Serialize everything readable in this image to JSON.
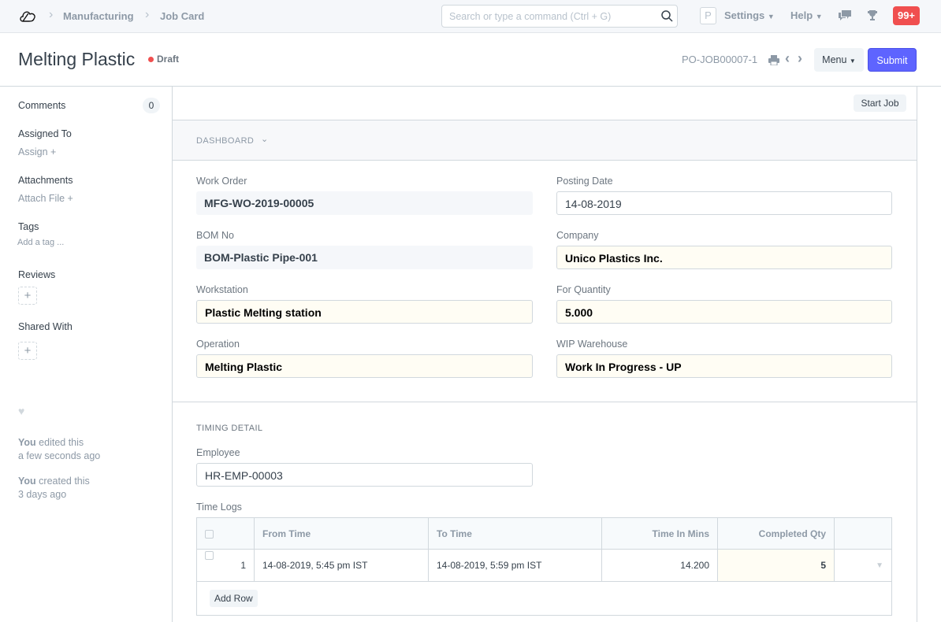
{
  "navbar": {
    "logo": "cloud-logo",
    "breadcrumbs": [
      "Manufacturing",
      "Job Card"
    ],
    "search_placeholder": "Search or type a command (Ctrl + G)",
    "avatar_letter": "P",
    "settings": "Settings",
    "help": "Help",
    "notifications": "99+"
  },
  "header": {
    "title": "Melting Plastic",
    "status": "Draft",
    "status_color": "#f04f4f",
    "doc_name": "PO-JOB00007-1",
    "menu": "Menu",
    "submit": "Submit",
    "submit_color": "#5e64ff"
  },
  "sidebar": {
    "comments": "Comments",
    "comments_count": "0",
    "assigned_to": "Assigned To",
    "assign": "Assign",
    "attachments": "Attachments",
    "attach_file": "Attach File",
    "tags": "Tags",
    "add_tag": "Add a tag ...",
    "reviews": "Reviews",
    "shared_with": "Shared With",
    "activity": [
      {
        "who": "You",
        "what": "edited this",
        "when": "a few seconds ago"
      },
      {
        "who": "You",
        "what": "created this",
        "when": "3 days ago"
      }
    ]
  },
  "toolbar": {
    "start_job": "Start Job"
  },
  "dashboard": {
    "label": "DASHBOARD"
  },
  "form": {
    "work_order": {
      "label": "Work Order",
      "value": "MFG-WO-2019-00005"
    },
    "bom_no": {
      "label": "BOM No",
      "value": "BOM-Plastic Pipe-001"
    },
    "workstation": {
      "label": "Workstation",
      "value": "Plastic Melting station"
    },
    "operation": {
      "label": "Operation",
      "value": "Melting Plastic"
    },
    "posting_date": {
      "label": "Posting Date",
      "value": "14-08-2019"
    },
    "company": {
      "label": "Company",
      "value": "Unico Plastics Inc."
    },
    "for_quantity": {
      "label": "For Quantity",
      "value": "5.000"
    },
    "wip_warehouse": {
      "label": "WIP Warehouse",
      "value": "Work In Progress - UP"
    }
  },
  "timing": {
    "section": "TIMING DETAIL",
    "employee_label": "Employee",
    "employee": "HR-EMP-00003",
    "time_logs_label": "Time Logs",
    "columns": [
      "From Time",
      "To Time",
      "Time In Mins",
      "Completed Qty"
    ],
    "rows": [
      {
        "idx": "1",
        "from": "14-08-2019, 5:45 pm IST",
        "to": "14-08-2019, 5:59 pm IST",
        "mins": "14.200",
        "qty": "5"
      }
    ],
    "add_row": "Add Row"
  }
}
